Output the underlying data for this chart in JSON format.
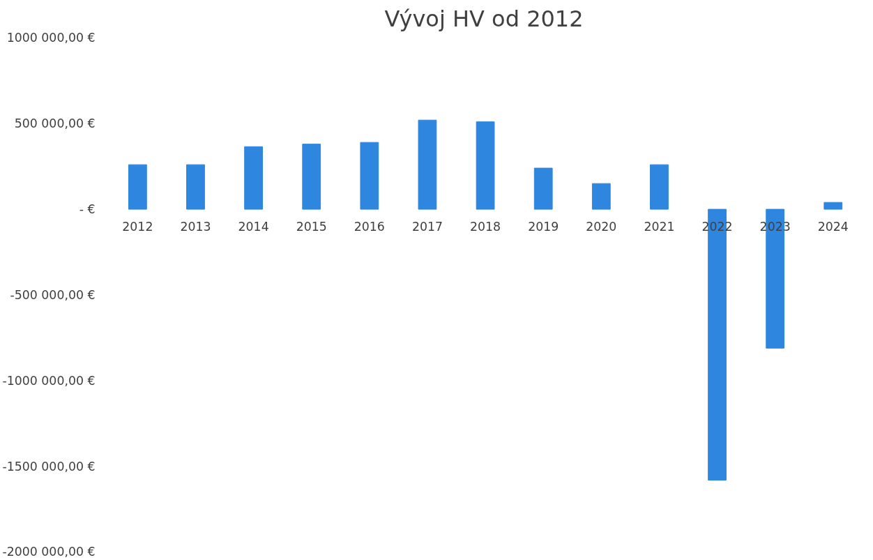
{
  "chart_data": {
    "type": "bar",
    "title": "Vývoj HV od 2012",
    "categories": [
      "2012",
      "2013",
      "2014",
      "2015",
      "2016",
      "2017",
      "2018",
      "2019",
      "2020",
      "2021",
      "2022",
      "2023",
      "2024"
    ],
    "series": [
      {
        "color": "#2e86de",
        "values": [
          260000,
          260000,
          365000,
          380000,
          390000,
          520000,
          510000,
          240000,
          150000,
          260000,
          -1580000,
          -810000,
          40000
        ]
      }
    ],
    "ylim": [
      -2000000,
      1000000
    ],
    "yticks": [
      {
        "value": -2000000,
        "label": "-2000 000,00 €"
      },
      {
        "value": -1500000,
        "label": "-1500 000,00 €"
      },
      {
        "value": -1000000,
        "label": "-1000 000,00 €"
      },
      {
        "value": -500000,
        "label": "-500 000,00 €"
      },
      {
        "value": 0,
        "label": "- €"
      },
      {
        "value": 500000,
        "label": "500 000,00 €"
      },
      {
        "value": 1000000,
        "label": "1000 000,00 €"
      }
    ],
    "grid": false
  }
}
